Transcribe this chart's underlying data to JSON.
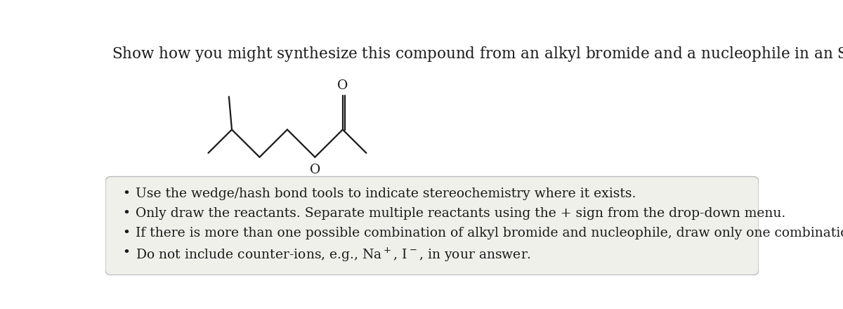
{
  "bg_color": "#ffffff",
  "box_color": "#f0f0eb",
  "box_border": "#bbbbbb",
  "text_color": "#1a1a1a",
  "bond_color": "#1a1a1a",
  "font_size_title": 15.5,
  "font_size_body": 13.5,
  "bullet_texts": [
    "Use the wedge/hash bond tools to indicate stereochemistry where it exists.",
    "Only draw the reactants. Separate multiple reactants using the + sign from the drop-down menu.",
    "If there is more than one possible combination of alkyl bromide and nucleophile, draw only one combination.",
    "Do not include counter-ions, e.g., Na$^+$, I$^-$, in your answer."
  ]
}
